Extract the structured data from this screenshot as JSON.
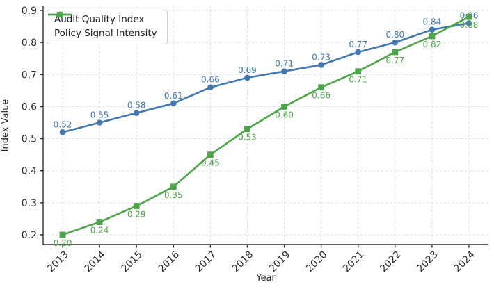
{
  "chart_data": {
    "type": "line",
    "title": "",
    "xlabel": "Year",
    "ylabel": "Index Value",
    "x": [
      "2013",
      "2014",
      "2015",
      "2016",
      "2017",
      "2018",
      "2019",
      "2020",
      "2021",
      "2022",
      "2023",
      "2024"
    ],
    "yticks": [
      0.2,
      0.3,
      0.4,
      0.5,
      0.6,
      0.7,
      0.8,
      0.9
    ],
    "ylim": [
      0.17,
      0.92
    ],
    "grid": "dashed",
    "legend_position": "upper-left",
    "series": [
      {
        "name": "Audit Quality Index",
        "color": "#4277b0",
        "marker": "circle",
        "label_placement": "above",
        "values": [
          0.52,
          0.55,
          0.58,
          0.61,
          0.66,
          0.69,
          0.71,
          0.73,
          0.77,
          0.8,
          0.84,
          0.86
        ]
      },
      {
        "name": "Policy Signal Intensity",
        "color": "#4fa44b",
        "marker": "square",
        "label_placement": "below",
        "values": [
          0.2,
          0.24,
          0.29,
          0.35,
          0.45,
          0.53,
          0.6,
          0.66,
          0.71,
          0.77,
          0.82,
          0.88
        ]
      }
    ],
    "style": {
      "grid_color": "#dcdcdc",
      "spine_color": "#2f2f2f",
      "tick_label_color": "#262626"
    }
  }
}
